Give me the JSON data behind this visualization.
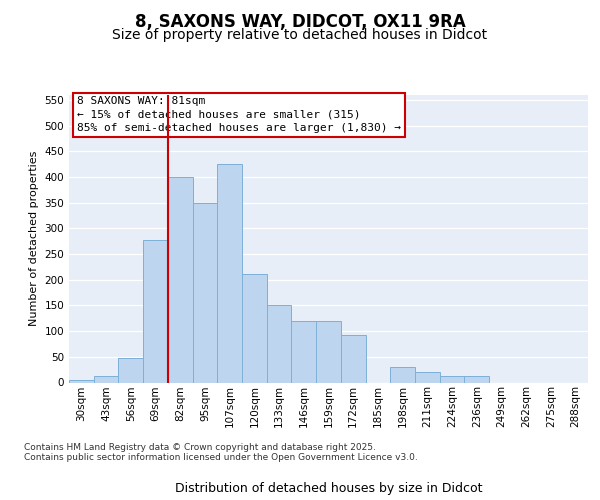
{
  "title1": "8, SAXONS WAY, DIDCOT, OX11 9RA",
  "title2": "Size of property relative to detached houses in Didcot",
  "xlabel": "Distribution of detached houses by size in Didcot",
  "ylabel": "Number of detached properties",
  "categories": [
    "30sqm",
    "43sqm",
    "56sqm",
    "69sqm",
    "82sqm",
    "95sqm",
    "107sqm",
    "120sqm",
    "133sqm",
    "146sqm",
    "159sqm",
    "172sqm",
    "185sqm",
    "198sqm",
    "211sqm",
    "224sqm",
    "236sqm",
    "249sqm",
    "262sqm",
    "275sqm",
    "288sqm"
  ],
  "values": [
    5,
    12,
    48,
    277,
    400,
    350,
    425,
    212,
    150,
    120,
    120,
    92,
    0,
    30,
    20,
    12,
    12,
    0,
    0,
    0,
    0
  ],
  "bar_color": "#bdd5ee",
  "bar_edge_color": "#7db0d8",
  "background_color": "#e8eef8",
  "vline_color": "#cc0000",
  "vline_position": 3.5,
  "annotation_line1": "8 SAXONS WAY: 81sqm",
  "annotation_line2": "← 15% of detached houses are smaller (315)",
  "annotation_line3": "85% of semi-detached houses are larger (1,830) →",
  "annotation_box_edge": "#cc0000",
  "ylim_max": 560,
  "yticks": [
    0,
    50,
    100,
    150,
    200,
    250,
    300,
    350,
    400,
    450,
    500,
    550
  ],
  "footnote": "Contains HM Land Registry data © Crown copyright and database right 2025.\nContains public sector information licensed under the Open Government Licence v3.0.",
  "title1_fontsize": 12,
  "title2_fontsize": 10,
  "xlabel_fontsize": 9,
  "ylabel_fontsize": 8,
  "tick_fontsize": 7.5,
  "annot_fontsize": 8,
  "footnote_fontsize": 6.5
}
